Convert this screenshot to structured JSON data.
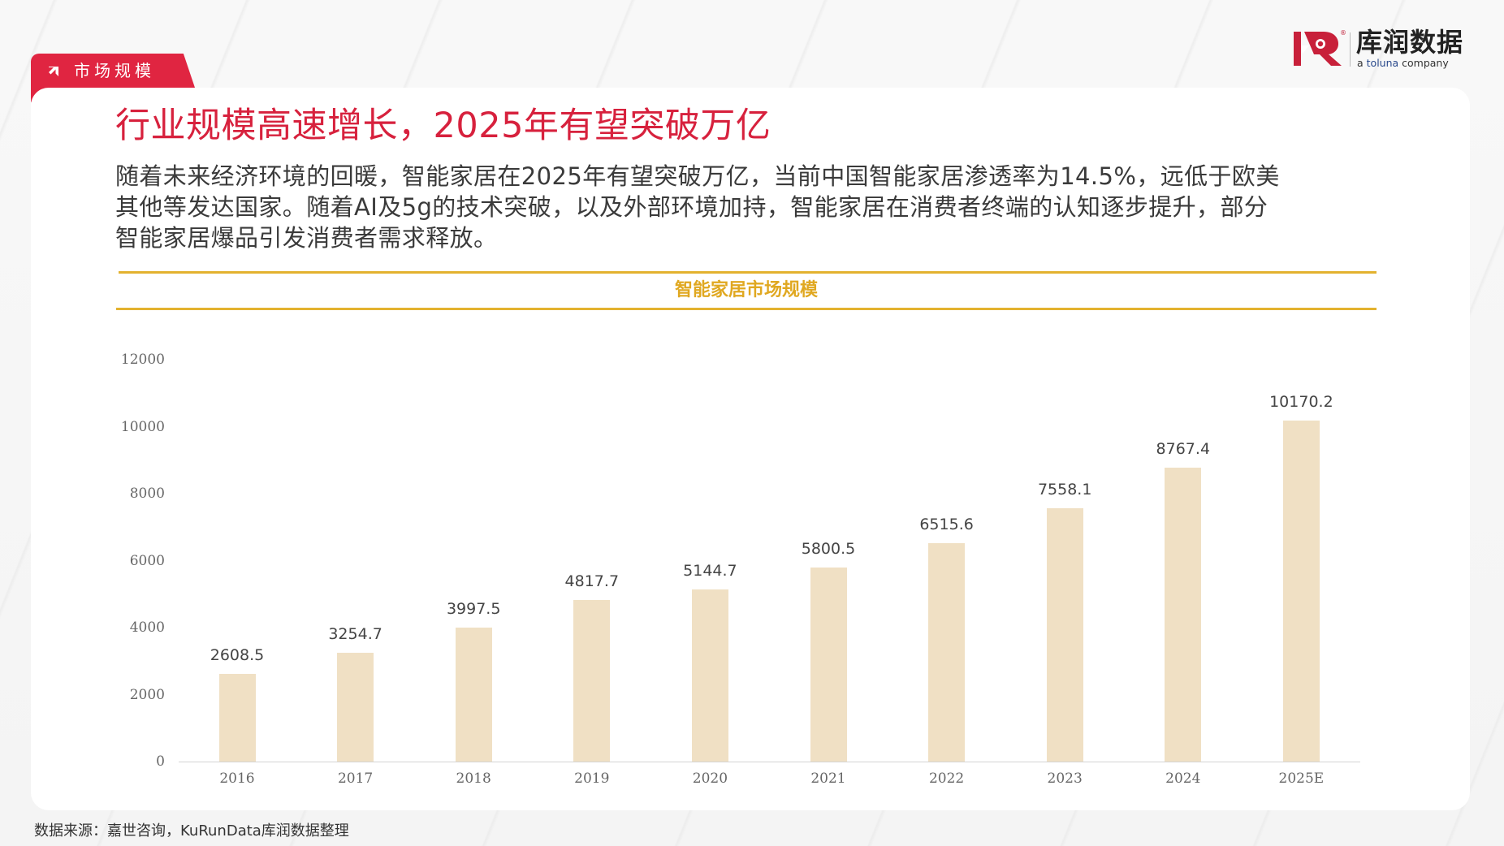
{
  "header": {
    "section_tab": "市场规模",
    "section_tab_icon": "arrow-up-right-icon",
    "logo": {
      "cn": "库润数据",
      "en_prefix": "a ",
      "en_brand": "toluna",
      "en_suffix": " company",
      "reg_mark": "®"
    }
  },
  "slide": {
    "title": "行业规模高速增长，2025年有望突破万亿",
    "paragraph_lines": [
      "随着未来经济环境的回暖，智能家居在2025年有望突破万亿，当前中国智能家居渗透率为14.5%，远低于欧美",
      "其他等发达国家。随着AI及5g的技术突破，以及外部环境加持，智能家居在消费者终端的认知逐步提升，部分",
      "智能家居爆品引发消费者需求释放。"
    ],
    "source": "数据来源：嘉世咨询，KuRunData库润数据整理"
  },
  "colors": {
    "accent_red": "#D7213D",
    "tab_red": "#E02541",
    "gold": "#E3B22F",
    "bar": "#F0E0C4"
  },
  "chart_data": {
    "type": "bar",
    "title": "智能家居市场规模",
    "xlabel": "",
    "ylabel": "",
    "categories": [
      "2016",
      "2017",
      "2018",
      "2019",
      "2020",
      "2021",
      "2022",
      "2023",
      "2024",
      "2025E"
    ],
    "values": [
      2608.5,
      3254.7,
      3997.5,
      4817.7,
      5144.7,
      5800.5,
      6515.6,
      7558.1,
      8767.4,
      10170.2
    ],
    "value_labels": [
      "2608.5",
      "3254.7",
      "3997.5",
      "4817.7",
      "5144.7",
      "5800.5",
      "6515.6",
      "7558.1",
      "8767.4",
      "10170.2"
    ],
    "yticks": [
      "0",
      "2000",
      "4000",
      "6000",
      "8000",
      "10000",
      "12000"
    ],
    "ylim": [
      0,
      12000
    ],
    "grid": false,
    "legend": null
  }
}
